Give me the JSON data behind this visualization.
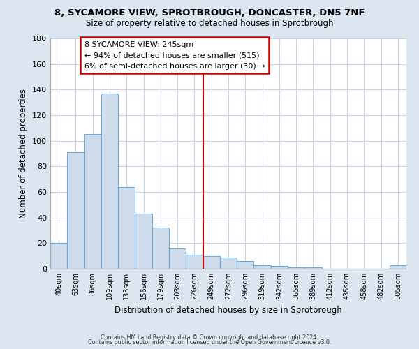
{
  "title": "8, SYCAMORE VIEW, SPROTBROUGH, DONCASTER, DN5 7NF",
  "subtitle": "Size of property relative to detached houses in Sprotbrough",
  "xlabel": "Distribution of detached houses by size in Sprotbrough",
  "ylabel": "Number of detached properties",
  "bar_labels": [
    "40sqm",
    "63sqm",
    "86sqm",
    "109sqm",
    "133sqm",
    "156sqm",
    "179sqm",
    "203sqm",
    "226sqm",
    "249sqm",
    "272sqm",
    "296sqm",
    "319sqm",
    "342sqm",
    "365sqm",
    "389sqm",
    "412sqm",
    "435sqm",
    "458sqm",
    "482sqm",
    "505sqm"
  ],
  "bar_values": [
    20,
    91,
    105,
    137,
    64,
    43,
    32,
    16,
    11,
    10,
    9,
    6,
    3,
    2,
    1,
    1,
    0,
    0,
    0,
    0,
    3
  ],
  "bar_color": "#cfdcec",
  "bar_edge_color": "#6aaad4",
  "ylim": [
    0,
    180
  ],
  "yticks": [
    0,
    20,
    40,
    60,
    80,
    100,
    120,
    140,
    160,
    180
  ],
  "vline_x": 9.0,
  "vline_color": "#cc0000",
  "annotation_title": "8 SYCAMORE VIEW: 245sqm",
  "annotation_line1": "← 94% of detached houses are smaller (515)",
  "annotation_line2": "6% of semi-detached houses are larger (30) →",
  "annotation_box_facecolor": "#ffffff",
  "annotation_box_edgecolor": "#cc0000",
  "footer_line1": "Contains HM Land Registry data © Crown copyright and database right 2024.",
  "footer_line2": "Contains public sector information licensed under the Open Government Licence v3.0.",
  "fig_background_color": "#dce6f1",
  "axes_background_color": "#ffffff",
  "grid_color": "#c8d4e3"
}
